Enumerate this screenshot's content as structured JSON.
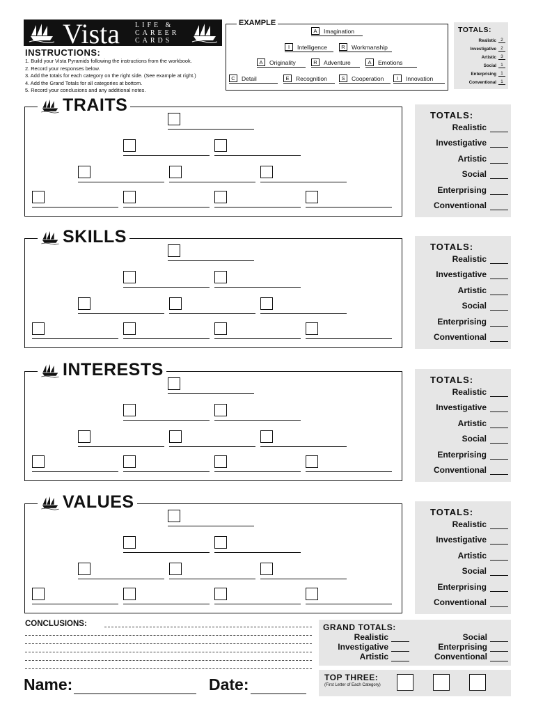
{
  "logo": {
    "brand": "Vista",
    "tagline": [
      "LIFE &",
      "CAREER",
      "CARDS"
    ]
  },
  "instructions": {
    "title": "INSTRUCTIONS:",
    "items": [
      "1.  Build your Vista Pyramids following the instructions from the workbook.",
      "2.  Record your responses below.",
      "3.  Add the totals for each category on the right side. (See example at right.)",
      "4.  Add the Grand Totals for all categories at bottom.",
      "5.  Record your conclusions and any additional notes."
    ]
  },
  "example": {
    "title": "EXAMPLE",
    "rows": [
      [
        {
          "letter": "A",
          "word": "Imagination"
        }
      ],
      [
        {
          "letter": "I",
          "word": "Intelligence"
        },
        {
          "letter": "R",
          "word": "Workmanship"
        }
      ],
      [
        {
          "letter": "A",
          "word": "Originality"
        },
        {
          "letter": "R",
          "word": "Adventure"
        },
        {
          "letter": "A",
          "word": "Emotions"
        }
      ],
      [
        {
          "letter": "C",
          "word": "Detail"
        },
        {
          "letter": "E",
          "word": "Recognition"
        },
        {
          "letter": "S",
          "word": "Cooperation"
        },
        {
          "letter": "I",
          "word": "Innovation"
        }
      ]
    ],
    "totals_title": "TOTALS:",
    "totals": [
      {
        "label": "Realistic",
        "value": "2"
      },
      {
        "label": "Investigative",
        "value": "2"
      },
      {
        "label": "Artistic",
        "value": "3"
      },
      {
        "label": "Social",
        "value": "1"
      },
      {
        "label": "Enterprising",
        "value": "1"
      },
      {
        "label": "Conventional",
        "value": "1"
      }
    ]
  },
  "categories": [
    "Realistic",
    "Investigative",
    "Artistic",
    "Social",
    "Enterprising",
    "Conventional"
  ],
  "totals_title": "TOTALS:",
  "sections": [
    {
      "title": "TRAITS"
    },
    {
      "title": "SKILLS"
    },
    {
      "title": "INTERESTS"
    },
    {
      "title": "VALUES"
    }
  ],
  "conclusions": {
    "label": "CONCLUSIONS:"
  },
  "grand_totals": {
    "title": "GRAND TOTALS:",
    "left": [
      "Realistic",
      "Investigative",
      "Artistic"
    ],
    "right": [
      "Social",
      "Enterprising",
      "Conventional"
    ]
  },
  "top_three": {
    "label": "TOP THREE:",
    "sub": "(First Letter of Each Category)"
  },
  "name_label": "Name:",
  "date_label": "Date:",
  "icons": {
    "ship": "ship-icon"
  },
  "colors": {
    "panel": "#e6e6e6",
    "ink": "#111111"
  }
}
